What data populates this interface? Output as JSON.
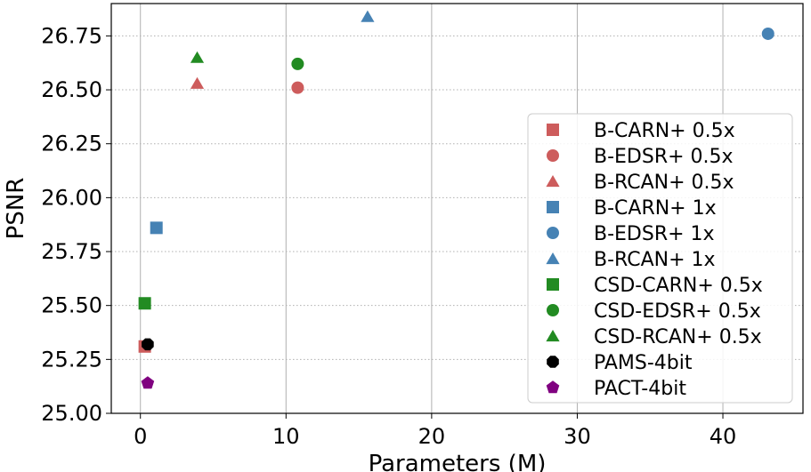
{
  "chart_data": {
    "type": "scatter",
    "xlabel": "Parameters (M)",
    "ylabel": "PSNR",
    "xlim": [
      -2,
      45.5
    ],
    "ylim": [
      25.0,
      26.9
    ],
    "xticks": [
      0,
      10,
      20,
      30,
      40
    ],
    "yticks": [
      25.0,
      25.25,
      25.5,
      25.75,
      26.0,
      26.25,
      26.5,
      26.75
    ],
    "xtick_labels": [
      "0",
      "10",
      "20",
      "30",
      "40"
    ],
    "ytick_labels": [
      "25.00",
      "25.25",
      "25.50",
      "25.75",
      "26.00",
      "26.25",
      "26.50",
      "26.75"
    ],
    "grid": "x-solid, y-dotted",
    "legend_position": "lower-right",
    "series": [
      {
        "name": "B-CARN+ 0.5x",
        "marker": "square",
        "color": "#CD5C5C",
        "points": [
          {
            "x": 0.3,
            "y": 25.31
          }
        ]
      },
      {
        "name": "B-EDSR+ 0.5x",
        "marker": "circle",
        "color": "#CD5C5C",
        "points": [
          {
            "x": 10.8,
            "y": 26.51
          }
        ]
      },
      {
        "name": "B-RCAN+ 0.5x",
        "marker": "triangle",
        "color": "#CD5C5C",
        "points": [
          {
            "x": 3.9,
            "y": 26.53
          }
        ]
      },
      {
        "name": "B-CARN+ 1x",
        "marker": "square",
        "color": "#4682B4",
        "points": [
          {
            "x": 1.1,
            "y": 25.86
          }
        ]
      },
      {
        "name": "B-EDSR+ 1x",
        "marker": "circle",
        "color": "#4682B4",
        "points": [
          {
            "x": 43.1,
            "y": 26.76
          }
        ]
      },
      {
        "name": "B-RCAN+ 1x",
        "marker": "triangle",
        "color": "#4682B4",
        "points": [
          {
            "x": 15.6,
            "y": 26.84
          }
        ]
      },
      {
        "name": "CSD-CARN+ 0.5x",
        "marker": "square",
        "color": "#228B22",
        "points": [
          {
            "x": 0.3,
            "y": 25.51
          }
        ]
      },
      {
        "name": "CSD-EDSR+ 0.5x",
        "marker": "circle",
        "color": "#228B22",
        "points": [
          {
            "x": 10.8,
            "y": 26.62
          }
        ]
      },
      {
        "name": "CSD-RCAN+ 0.5x",
        "marker": "triangle",
        "color": "#228B22",
        "points": [
          {
            "x": 3.9,
            "y": 26.65
          }
        ]
      },
      {
        "name": "PAMS-4bit",
        "marker": "octagon",
        "color": "#000000",
        "points": [
          {
            "x": 0.5,
            "y": 25.32
          }
        ]
      },
      {
        "name": "PACT-4bit",
        "marker": "pentagon",
        "color": "#800080",
        "points": [
          {
            "x": 0.5,
            "y": 25.14
          }
        ]
      }
    ]
  }
}
